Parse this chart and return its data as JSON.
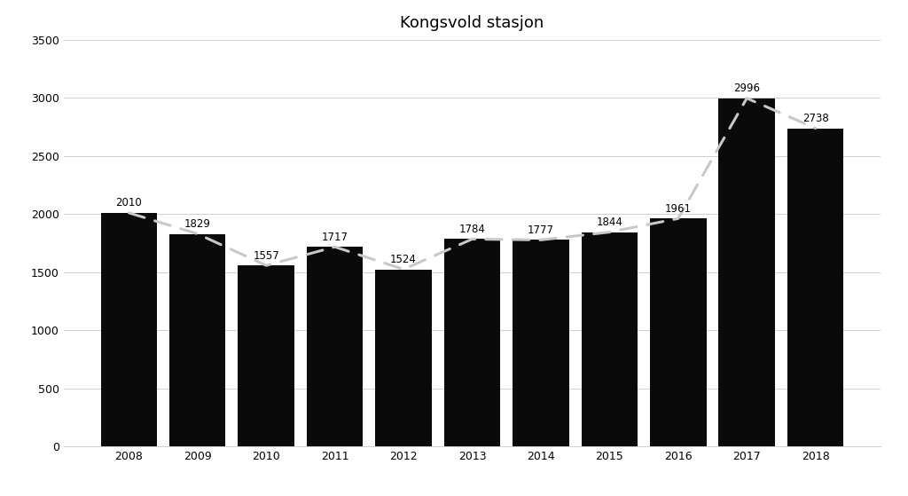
{
  "title": "Kongsvold stasjon",
  "years": [
    2008,
    2009,
    2010,
    2011,
    2012,
    2013,
    2014,
    2015,
    2016,
    2017,
    2018
  ],
  "values": [
    2010,
    1829,
    1557,
    1717,
    1524,
    1784,
    1777,
    1844,
    1961,
    2996,
    2738
  ],
  "bar_color": "#0a0a0a",
  "line_color": "#c8c8c8",
  "background_color": "#ffffff",
  "ylim": [
    0,
    3500
  ],
  "yticks": [
    0,
    500,
    1000,
    1500,
    2000,
    2500,
    3000,
    3500
  ],
  "grid_color": "#d0d0d0",
  "title_fontsize": 13,
  "label_fontsize": 8.5,
  "tick_fontsize": 9,
  "bar_width": 0.82
}
